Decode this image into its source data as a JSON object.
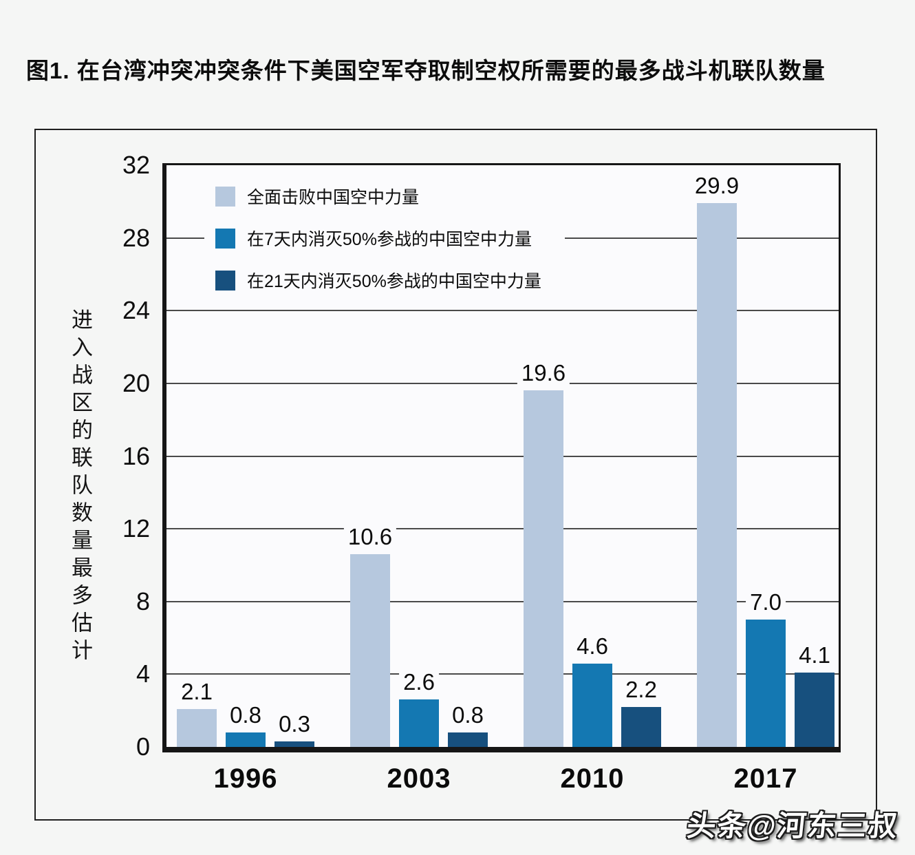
{
  "header": {
    "title": "图1. 在台湾冲突冲突条件下美国空军夺取制空权所需要的最多战斗机联队数量"
  },
  "page": {
    "watermark": "头条@河东三叔",
    "background_color": "#f5f6f5",
    "plot_background_color": "#fbfbfd"
  },
  "chart_data": {
    "type": "bar",
    "title": "图1. 在台湾冲突冲突条件下美国空军夺取制空权所需要的最多战斗机联队数量",
    "ylabel": "进入战区的联队数量最多估计",
    "xlabel": "",
    "categories": [
      "1996",
      "2003",
      "2010",
      "2017"
    ],
    "series": [
      {
        "name": "全面击败中国空中力量",
        "color": "#b6c8de",
        "values": [
          2.1,
          10.6,
          19.6,
          29.9
        ],
        "labels": [
          "2.1",
          "10.6",
          "19.6",
          "29.9"
        ]
      },
      {
        "name": "在7天内消灭50%参战的中国空中力量",
        "color": "#1478b2",
        "values": [
          0.8,
          2.6,
          4.6,
          7.0
        ],
        "labels": [
          "0.8",
          "2.6",
          "4.6",
          "7.0"
        ]
      },
      {
        "name": "在21天内消灭50%参战的中国空中力量",
        "color": "#17507e",
        "values": [
          0.3,
          0.8,
          2.2,
          4.1
        ],
        "labels": [
          "0.3",
          "0.8",
          "2.2",
          "4.1"
        ]
      }
    ],
    "ylim": [
      0,
      32
    ],
    "yticks": [
      0,
      4,
      8,
      12,
      16,
      20,
      24,
      28,
      32
    ],
    "grid": true,
    "legend_position": "inside-top-left"
  }
}
